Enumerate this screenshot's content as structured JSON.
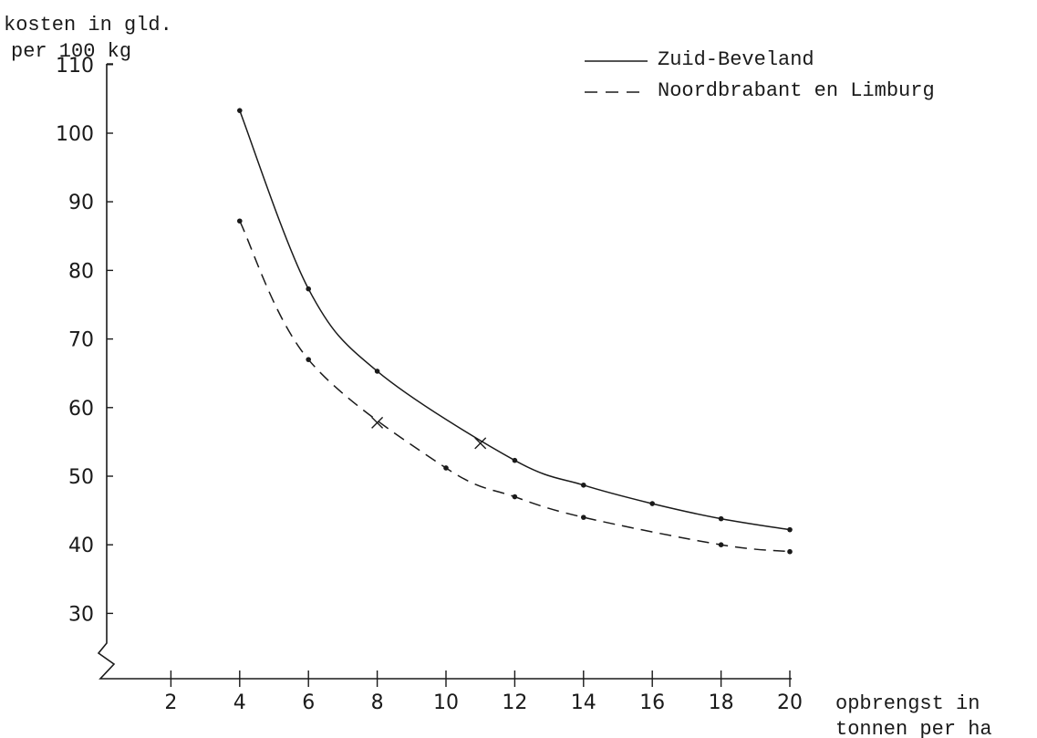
{
  "chart_data": {
    "type": "line",
    "ylabel_line1": "kosten in gld.",
    "ylabel_line2": "per 100 kg",
    "xlabel_line1": "opbrengst in",
    "xlabel_line2": "tonnen per ha",
    "xlim": [
      0,
      20
    ],
    "ylim": [
      20,
      110
    ],
    "x_ticks": [
      2,
      4,
      6,
      8,
      10,
      12,
      14,
      16,
      18,
      20
    ],
    "y_ticks": [
      30,
      40,
      50,
      60,
      70,
      80,
      90,
      100,
      110
    ],
    "y_axis_break": true,
    "grid": false,
    "legend_position": "top-right",
    "series": [
      {
        "name": "Zuid-Beveland",
        "style": "solid",
        "x": [
          4,
          6,
          8,
          12,
          14,
          16,
          18,
          20
        ],
        "y": [
          103.3,
          77.3,
          65.3,
          52.3,
          48.7,
          46,
          43.8,
          42.2
        ]
      },
      {
        "name": "Noordbrabant en Limburg",
        "style": "dashed",
        "x": [
          4,
          6,
          10,
          12,
          14,
          18,
          20
        ],
        "y": [
          87.2,
          67,
          51.2,
          47,
          44,
          40,
          39
        ]
      }
    ],
    "crosses": [
      {
        "x": 8,
        "y": 57.8
      },
      {
        "x": 11,
        "y": 54.8
      }
    ]
  }
}
